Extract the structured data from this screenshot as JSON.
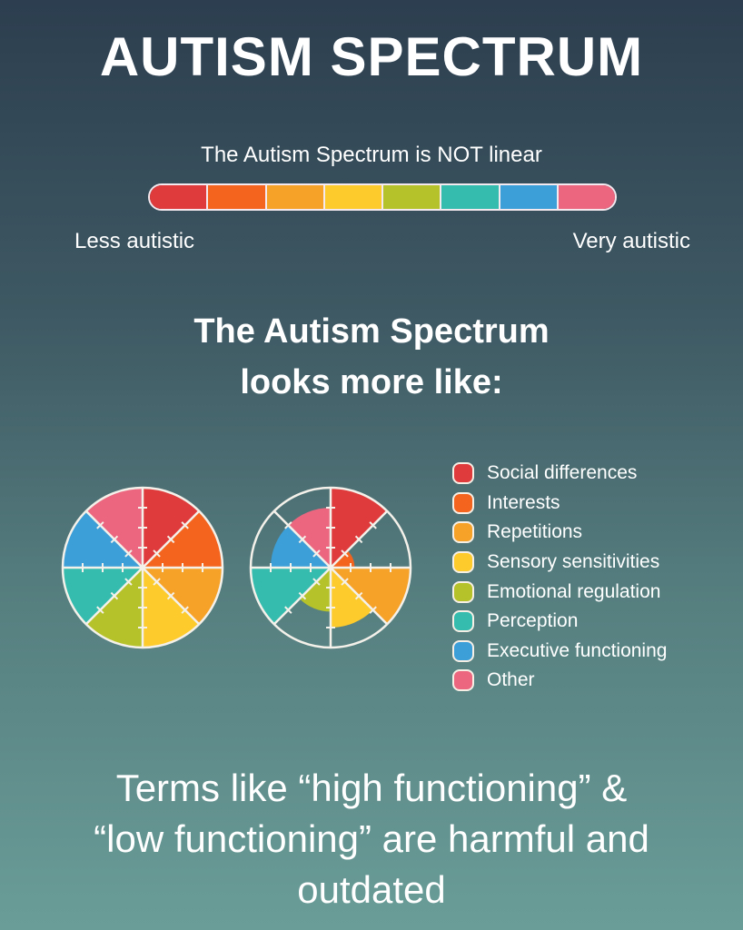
{
  "header": {
    "title": "AUTISM SPECTRUM"
  },
  "linear_scale": {
    "caption": "The Autism Spectrum is NOT linear",
    "left_label": "Less autistic",
    "right_label": "Very autistic",
    "segment_colors": [
      "#df3a3c",
      "#f4641f",
      "#f6a228",
      "#fdcb2b",
      "#b6c22a",
      "#35bcae",
      "#3d9fd8",
      "#ec6680"
    ]
  },
  "section": {
    "line1": "The Autism Spectrum",
    "line2": "looks more like:"
  },
  "legend": {
    "items": [
      {
        "label": "Social differences",
        "color": "#df3a3c"
      },
      {
        "label": "Interests",
        "color": "#f4641f"
      },
      {
        "label": "Repetitions",
        "color": "#f6a228"
      },
      {
        "label": "Sensory sensitivities",
        "color": "#fdcb2b"
      },
      {
        "label": "Emotional regulation",
        "color": "#b6c22a"
      },
      {
        "label": "Perception",
        "color": "#35bcae"
      },
      {
        "label": "Executive functioning",
        "color": "#3d9fd8"
      },
      {
        "label": "Other",
        "color": "#ec6680"
      }
    ]
  },
  "chart_data": [
    {
      "type": "pie",
      "title": "Full wheel",
      "categories": [
        "Social differences",
        "Interests",
        "Repetitions",
        "Sensory sensitivities",
        "Emotional regulation",
        "Perception",
        "Executive functioning",
        "Other"
      ],
      "values": [
        1,
        1,
        1,
        1,
        1,
        1,
        1,
        1
      ]
    },
    {
      "type": "pie",
      "title": "Individual profile wheel (radial extent of each sector)",
      "categories": [
        "Social differences",
        "Interests",
        "Repetitions",
        "Sensory sensitivities",
        "Emotional regulation",
        "Perception",
        "Executive functioning",
        "Other"
      ],
      "values": [
        1.0,
        0.3,
        1.0,
        0.75,
        0.55,
        1.0,
        0.75,
        0.75
      ]
    }
  ],
  "footer": {
    "line1": "Terms like “high functioning” &",
    "line2": "“low functioning” are harmful and",
    "line3": "outdated"
  }
}
